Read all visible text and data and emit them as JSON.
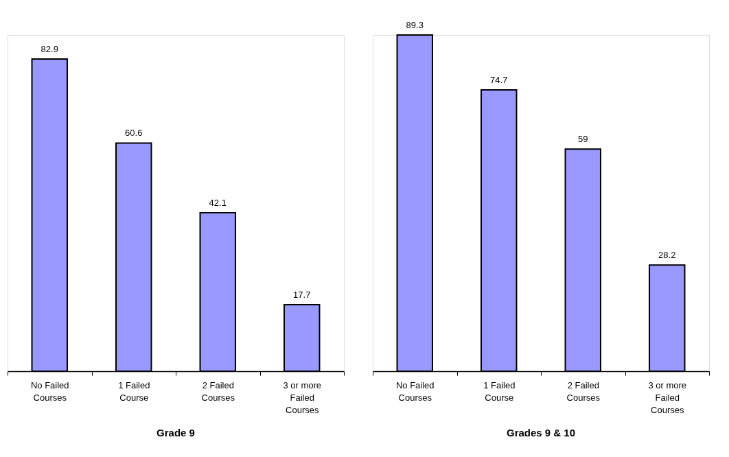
{
  "chart_data": [
    {
      "type": "bar",
      "title": "Grade 9",
      "categories": [
        "No Failed Courses",
        "1 Failed Course",
        "2 Failed Courses",
        "3 or more Failed Courses"
      ],
      "values": [
        82.9,
        60.6,
        42.1,
        17.7
      ],
      "color": "#9999ff",
      "data_labels": true,
      "tick_labels": "x"
    },
    {
      "type": "bar",
      "title": "Grades 9 & 10",
      "categories": [
        "No Failed Courses",
        "1 Failed Course",
        "2 Failed Courses",
        "3 or more Failed Courses"
      ],
      "values": [
        89.3,
        74.7,
        59,
        28.2
      ],
      "color": "#9999ff",
      "data_labels": true,
      "tick_labels": "x"
    }
  ]
}
